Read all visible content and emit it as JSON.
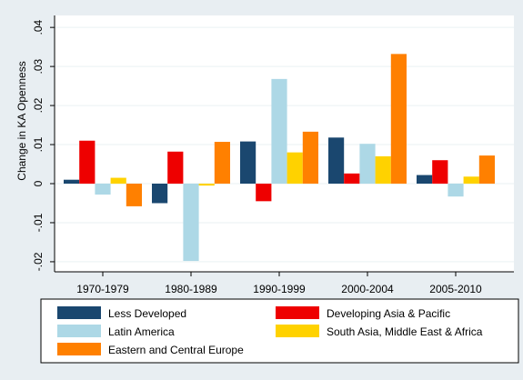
{
  "chart_data": {
    "type": "bar",
    "title": "",
    "xlabel": "",
    "ylabel": "Change in KA Openness",
    "ylim": [
      -0.025,
      0.045
    ],
    "yticks": [
      -0.02,
      -0.01,
      0,
      0.01,
      0.02,
      0.03,
      0.04
    ],
    "ytick_labels": [
      "-.02",
      "-.01",
      "0",
      ".01",
      ".02",
      ".03",
      ".04"
    ],
    "grid": true,
    "legend_position": "bottom",
    "categories": [
      "1970-1979",
      "1980-1989",
      "1990-1999",
      "2000-2004",
      "2005-2010"
    ],
    "series": [
      {
        "name": "Less Developed",
        "color": "#1a476f",
        "values": [
          0.001,
          -0.005,
          0.0108,
          0.0118,
          0.0022
        ]
      },
      {
        "name": "Developing Asia & Pacific",
        "color": "#ee0000",
        "values": [
          0.011,
          0.0082,
          -0.0045,
          0.0026,
          0.006
        ]
      },
      {
        "name": "Latin America",
        "color": "#add8e6",
        "values": [
          -0.0028,
          -0.0198,
          0.0268,
          0.0102,
          -0.0033
        ]
      },
      {
        "name": "South Asia, Middle East & Africa",
        "color": "#ffd200",
        "values": [
          0.0015,
          -0.0005,
          0.008,
          0.007,
          0.0018
        ]
      },
      {
        "name": "Eastern and Central Europe",
        "color": "#ff8000",
        "values": [
          -0.0058,
          0.0107,
          0.0133,
          0.0332,
          0.0072
        ]
      }
    ]
  }
}
